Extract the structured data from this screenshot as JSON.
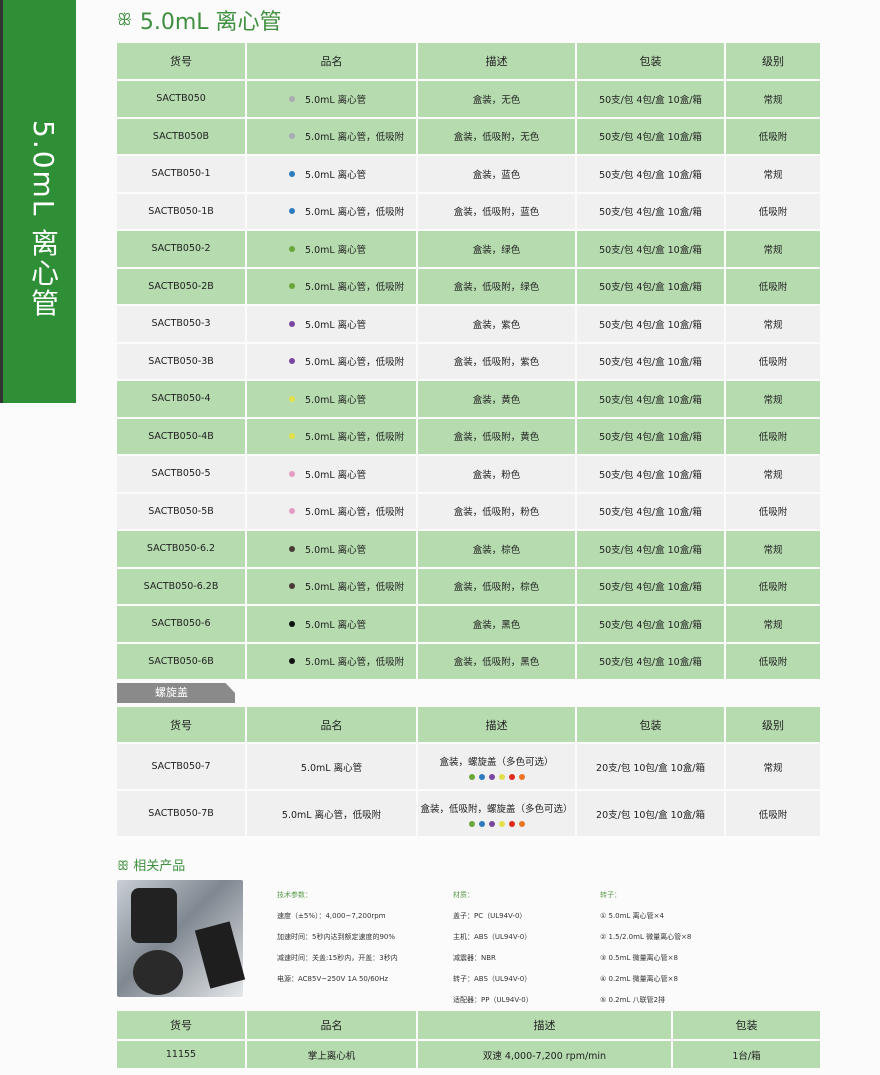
{
  "side_label": "5.0mL 离心管",
  "title": "5.0mL 离心管",
  "headers": [
    "货号",
    "品名",
    "描述",
    "包装",
    "级别"
  ],
  "rows": [
    {
      "id": "SACTB050",
      "name": "5.0mL 离心管",
      "desc": "盒装，无色",
      "pack": "50支/包 4包/盒 10盒/箱",
      "grade": "常规",
      "color": "#a9acb3",
      "bg": "g"
    },
    {
      "id": "SACTB050B",
      "name": "5.0mL 离心管，低吸附",
      "desc": "盒装，低吸附，无色",
      "pack": "50支/包 4包/盒 10盒/箱",
      "grade": "低吸附",
      "color": "#a9acb3",
      "bg": "g"
    },
    {
      "id": "SACTB050-1",
      "name": "5.0mL 离心管",
      "desc": "盒装，蓝色",
      "pack": "50支/包 4包/盒 10盒/箱",
      "grade": "常规",
      "color": "#2e7bc0",
      "bg": "w"
    },
    {
      "id": "SACTB050-1B",
      "name": "5.0mL 离心管，低吸附",
      "desc": "盒装，低吸附，蓝色",
      "pack": "50支/包 4包/盒 10盒/箱",
      "grade": "低吸附",
      "color": "#2e7bc0",
      "bg": "w"
    },
    {
      "id": "SACTB050-2",
      "name": "5.0mL 离心管",
      "desc": "盒装，绿色",
      "pack": "50支/包 4包/盒 10盒/箱",
      "grade": "常规",
      "color": "#6aa63a",
      "bg": "g"
    },
    {
      "id": "SACTB050-2B",
      "name": "5.0mL 离心管，低吸附",
      "desc": "盒装，低吸附，绿色",
      "pack": "50支/包 4包/盒 10盒/箱",
      "grade": "低吸附",
      "color": "#6aa63a",
      "bg": "g"
    },
    {
      "id": "SACTB050-3",
      "name": "5.0mL 离心管",
      "desc": "盒装，紫色",
      "pack": "50支/包 4包/盒 10盒/箱",
      "grade": "常规",
      "color": "#7a47a0",
      "bg": "w"
    },
    {
      "id": "SACTB050-3B",
      "name": "5.0mL 离心管，低吸附",
      "desc": "盒装，低吸附，紫色",
      "pack": "50支/包 4包/盒 10盒/箱",
      "grade": "低吸附",
      "color": "#7a47a0",
      "bg": "w"
    },
    {
      "id": "SACTB050-4",
      "name": "5.0mL 离心管",
      "desc": "盒装，黄色",
      "pack": "50支/包 4包/盒 10盒/箱",
      "grade": "常规",
      "color": "#e3df4a",
      "bg": "g"
    },
    {
      "id": "SACTB050-4B",
      "name": "5.0mL 离心管，低吸附",
      "desc": "盒装，低吸附，黄色",
      "pack": "50支/包 4包/盒 10盒/箱",
      "grade": "低吸附",
      "color": "#e3df4a",
      "bg": "g"
    },
    {
      "id": "SACTB050-5",
      "name": "5.0mL 离心管",
      "desc": "盒装，粉色",
      "pack": "50支/包 4包/盒 10盒/箱",
      "grade": "常规",
      "color": "#e59cc3",
      "bg": "w"
    },
    {
      "id": "SACTB050-5B",
      "name": "5.0mL 离心管，低吸附",
      "desc": "盒装，低吸附，粉色",
      "pack": "50支/包 4包/盒 10盒/箱",
      "grade": "低吸附",
      "color": "#e59cc3",
      "bg": "w"
    },
    {
      "id": "SACTB050-6.2",
      "name": "5.0mL 离心管",
      "desc": "盒装，棕色",
      "pack": "50支/包 4包/盒 10盒/箱",
      "grade": "常规",
      "color": "#4a3a36",
      "bg": "g"
    },
    {
      "id": "SACTB050-6.2B",
      "name": "5.0mL 离心管，低吸附",
      "desc": "盒装，低吸附，棕色",
      "pack": "50支/包 4包/盒 10盒/箱",
      "grade": "低吸附",
      "color": "#4a3a36",
      "bg": "g"
    },
    {
      "id": "SACTB050-6",
      "name": "5.0mL 离心管",
      "desc": "盒装，黑色",
      "pack": "50支/包 4包/盒 10盒/箱",
      "grade": "常规",
      "color": "#111111",
      "bg": "g"
    },
    {
      "id": "SACTB050-6B",
      "name": "5.0mL 离心管，低吸附",
      "desc": "盒装，低吸附，黑色",
      "pack": "50支/包 4包/盒 10盒/箱",
      "grade": "低吸附",
      "color": "#111111",
      "bg": "g"
    }
  ],
  "screw": {
    "tab": "螺旋盖",
    "rows": [
      {
        "id": "SACTB050-7",
        "name": "5.0mL 离心管",
        "desc": "盒装，螺旋盖（多色可选）",
        "pack": "20支/包 10包/盒 10盒/箱",
        "grade": "常规"
      },
      {
        "id": "SACTB050-7B",
        "name": "5.0mL 离心管，低吸附",
        "desc": "盒装，低吸附，螺旋盖（多色可选）",
        "pack": "20支/包 10包/盒 10盒/箱",
        "grade": "低吸附"
      }
    ],
    "cap_colors": [
      "#6aa63a",
      "#2e7bc0",
      "#7a47a0",
      "#e3df4a",
      "#e02a1f",
      "#ec7424"
    ]
  },
  "related": {
    "title": "相关产品",
    "tech": [
      "技术参数：",
      "速度（±5%）：4,000~7,200rpm",
      "加速时间：5秒内达到额定速度的90%",
      "减速时间：关盖:15秒内，开盖：3秒内",
      "电源：AC85V~250V 1A 50/60Hz"
    ],
    "material": [
      "材质：",
      "盖子：PC（UL94V-0）",
      "主机：ABS（UL94V-0）",
      "减震器：NBR",
      "转子：ABS（UL94V-0）",
      "适配器：PP（UL94V-0）"
    ],
    "rotor": [
      "转子：",
      "① 5.0mL 离心管×4",
      "② 1.5/2.0mL 微量离心管×8",
      "③ 0.5mL 微量离心管×8",
      "④ 0.2mL 微量离心管×8",
      "⑤ 0.2mL 八联管2排"
    ],
    "headers": [
      "货号",
      "品名",
      "描述",
      "包装"
    ],
    "row": {
      "id": "11155",
      "name": "掌上离心机",
      "desc": "双速 4,000-7,200 rpm/min",
      "pack": "1台/箱"
    }
  }
}
